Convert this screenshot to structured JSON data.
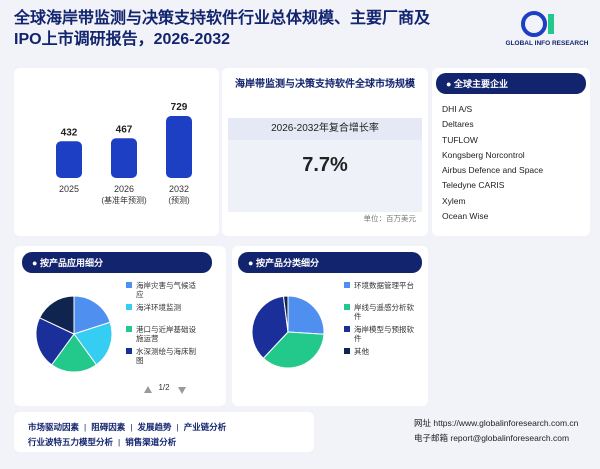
{
  "header": {
    "title": "全球海岸带监测与决策支持软件行业总体规模、主要厂商及IPO上市调研报告，2026-2032",
    "logo": "GLOBAL INFO RESEARCH"
  },
  "market": {
    "type": "bar",
    "categories": [
      "2025",
      "2026",
      "2032"
    ],
    "sublabels": [
      null,
      "(基准年预测)",
      "(预测)"
    ],
    "values": [
      432,
      467,
      729
    ],
    "color": "#1d3fc4"
  },
  "summary": {
    "title": "海岸带监测与决策支持软件全球市场规模",
    "cagr_label": "2026-2032年复合增长率",
    "cagr": "7.7%",
    "unit": "单位：百万美元"
  },
  "companies": {
    "title": "全球主要企业",
    "items": [
      "DHI A/S",
      "Deltares",
      "TUFLOW",
      "Kongsberg Norcontrol",
      "Airbus Defence and Space",
      "Teledyne CARIS",
      "Xylem",
      "Ocean Wise"
    ]
  },
  "application": {
    "type": "pie",
    "title": "按产品应用细分",
    "categories": [
      "海岸灾害与气候适应",
      "海洋环境监测",
      "港口与近岸基础设施运营",
      "水深测绘与海床制图",
      null
    ],
    "values": [
      20,
      20,
      20,
      22,
      18
    ],
    "colors": [
      "#4f8ff0",
      "#35cdf2",
      "#22c98a",
      "#1a2f9a",
      "#0f2550"
    ],
    "page": "1/2"
  },
  "product": {
    "type": "pie",
    "title": "按产品分类细分",
    "categories": [
      "环境数据管理平台",
      "岸线与遥感分析软件",
      "海岸模型与预报软件",
      "其他"
    ],
    "values": [
      26,
      36,
      36,
      2
    ],
    "colors": [
      "#4f8ff0",
      "#22c98a",
      "#1a2f9a",
      "#0f2550"
    ]
  },
  "footer": {
    "links": [
      "市场驱动因素",
      "阻碍因素",
      "发展趋势",
      "产业链分析",
      "行业波特五力模型分析",
      "销售渠道分析"
    ],
    "website": "网址 https://www.globalinforesearch.com.cn",
    "email": "电子邮箱 report@globalinforesearch.com"
  }
}
